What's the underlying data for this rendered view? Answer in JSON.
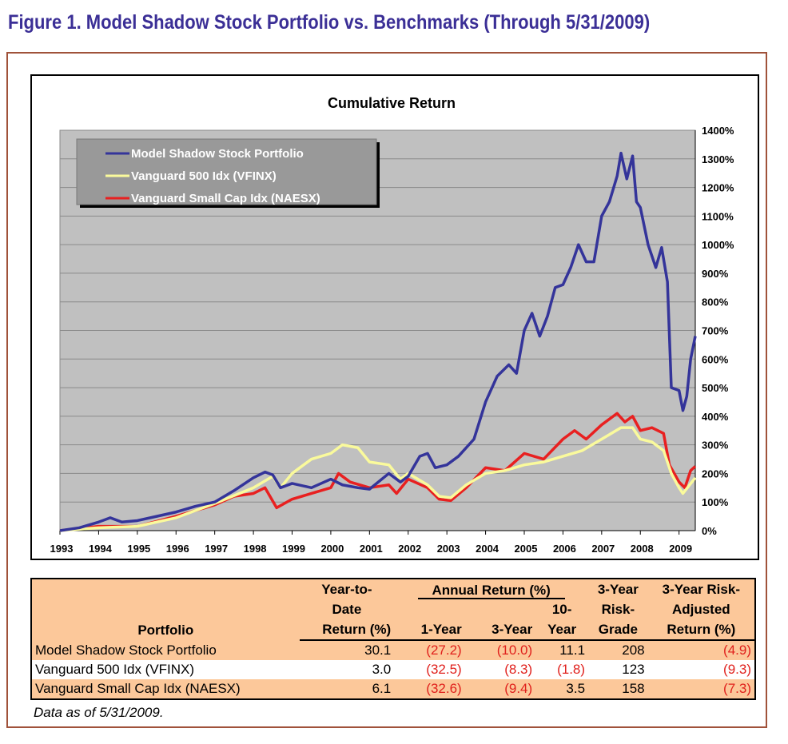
{
  "figure_title": "Figure 1. Model Shadow Stock Portfolio vs. Benchmarks (Through 5/31/2009)",
  "chart_data": {
    "type": "line",
    "title": "Cumulative Return",
    "xlim": [
      1993,
      2009.42
    ],
    "ylim": [
      0,
      1400
    ],
    "x_ticks": [
      "1993",
      "1994",
      "1995",
      "1996",
      "1997",
      "1998",
      "1999",
      "2000",
      "2001",
      "2002",
      "2003",
      "2004",
      "2005",
      "2006",
      "2007",
      "2008",
      "2009"
    ],
    "y_ticks": [
      "0%",
      "100%",
      "200%",
      "300%",
      "400%",
      "500%",
      "600%",
      "700%",
      "800%",
      "900%",
      "1000%",
      "1100%",
      "1200%",
      "1300%",
      "1400%"
    ],
    "grid": true,
    "legend_placement": "top-left",
    "series": [
      {
        "name": "Model Shadow Stock Portfolio",
        "color": "#34349a",
        "points": [
          [
            1993,
            0
          ],
          [
            1993.5,
            10
          ],
          [
            1994,
            30
          ],
          [
            1994.3,
            45
          ],
          [
            1994.6,
            30
          ],
          [
            1995,
            35
          ],
          [
            1995.5,
            50
          ],
          [
            1996,
            65
          ],
          [
            1996.5,
            85
          ],
          [
            1997,
            100
          ],
          [
            1997.5,
            140
          ],
          [
            1998,
            185
          ],
          [
            1998.3,
            205
          ],
          [
            1998.5,
            195
          ],
          [
            1998.7,
            150
          ],
          [
            1999,
            165
          ],
          [
            1999.5,
            150
          ],
          [
            2000,
            180
          ],
          [
            2000.3,
            160
          ],
          [
            2000.7,
            150
          ],
          [
            2001,
            145
          ],
          [
            2001.5,
            200
          ],
          [
            2001.8,
            170
          ],
          [
            2002,
            190
          ],
          [
            2002.3,
            260
          ],
          [
            2002.5,
            270
          ],
          [
            2002.7,
            220
          ],
          [
            2003,
            230
          ],
          [
            2003.3,
            260
          ],
          [
            2003.7,
            320
          ],
          [
            2004,
            450
          ],
          [
            2004.3,
            540
          ],
          [
            2004.6,
            580
          ],
          [
            2004.8,
            550
          ],
          [
            2005,
            700
          ],
          [
            2005.2,
            760
          ],
          [
            2005.4,
            680
          ],
          [
            2005.6,
            750
          ],
          [
            2005.8,
            850
          ],
          [
            2006,
            860
          ],
          [
            2006.2,
            920
          ],
          [
            2006.4,
            1000
          ],
          [
            2006.6,
            940
          ],
          [
            2006.8,
            940
          ],
          [
            2007,
            1100
          ],
          [
            2007.2,
            1150
          ],
          [
            2007.4,
            1240
          ],
          [
            2007.5,
            1320
          ],
          [
            2007.65,
            1230
          ],
          [
            2007.8,
            1310
          ],
          [
            2007.9,
            1150
          ],
          [
            2008,
            1130
          ],
          [
            2008.2,
            1000
          ],
          [
            2008.4,
            920
          ],
          [
            2008.55,
            990
          ],
          [
            2008.7,
            870
          ],
          [
            2008.8,
            500
          ],
          [
            2009,
            490
          ],
          [
            2009.1,
            420
          ],
          [
            2009.2,
            470
          ],
          [
            2009.3,
            600
          ],
          [
            2009.42,
            680
          ]
        ]
      },
      {
        "name": "Vanguard 500 Idx (VFINX)",
        "color": "#fafa9c",
        "points": [
          [
            1993,
            0
          ],
          [
            1994,
            10
          ],
          [
            1995,
            15
          ],
          [
            1996,
            45
          ],
          [
            1997,
            95
          ],
          [
            1998,
            150
          ],
          [
            1998.5,
            190
          ],
          [
            1998.7,
            150
          ],
          [
            1999,
            200
          ],
          [
            1999.5,
            250
          ],
          [
            2000,
            270
          ],
          [
            2000.3,
            300
          ],
          [
            2000.7,
            290
          ],
          [
            2001,
            240
          ],
          [
            2001.5,
            230
          ],
          [
            2001.8,
            180
          ],
          [
            2002,
            200
          ],
          [
            2002.5,
            160
          ],
          [
            2002.8,
            120
          ],
          [
            2003.1,
            115
          ],
          [
            2003.5,
            160
          ],
          [
            2004,
            200
          ],
          [
            2004.5,
            210
          ],
          [
            2005,
            230
          ],
          [
            2005.5,
            240
          ],
          [
            2006,
            260
          ],
          [
            2006.5,
            280
          ],
          [
            2007,
            320
          ],
          [
            2007.5,
            360
          ],
          [
            2007.8,
            360
          ],
          [
            2008,
            320
          ],
          [
            2008.3,
            310
          ],
          [
            2008.6,
            280
          ],
          [
            2008.8,
            200
          ],
          [
            2009,
            150
          ],
          [
            2009.1,
            130
          ],
          [
            2009.42,
            185
          ]
        ]
      },
      {
        "name": "Vanguard Small Cap Idx (NAESX)",
        "color": "#e82020",
        "points": [
          [
            1993,
            0
          ],
          [
            1994,
            15
          ],
          [
            1995,
            15
          ],
          [
            1996,
            50
          ],
          [
            1997,
            90
          ],
          [
            1997.5,
            120
          ],
          [
            1998,
            130
          ],
          [
            1998.3,
            150
          ],
          [
            1998.6,
            80
          ],
          [
            1999,
            110
          ],
          [
            1999.5,
            130
          ],
          [
            2000,
            150
          ],
          [
            2000.2,
            200
          ],
          [
            2000.5,
            170
          ],
          [
            2001,
            150
          ],
          [
            2001.5,
            160
          ],
          [
            2001.7,
            130
          ],
          [
            2002,
            180
          ],
          [
            2002.5,
            150
          ],
          [
            2002.8,
            110
          ],
          [
            2003.1,
            105
          ],
          [
            2003.5,
            150
          ],
          [
            2004,
            220
          ],
          [
            2004.5,
            210
          ],
          [
            2005,
            270
          ],
          [
            2005.5,
            250
          ],
          [
            2006,
            320
          ],
          [
            2006.3,
            350
          ],
          [
            2006.6,
            320
          ],
          [
            2007,
            370
          ],
          [
            2007.4,
            410
          ],
          [
            2007.6,
            380
          ],
          [
            2007.8,
            400
          ],
          [
            2008,
            350
          ],
          [
            2008.3,
            360
          ],
          [
            2008.6,
            340
          ],
          [
            2008.75,
            230
          ],
          [
            2009,
            170
          ],
          [
            2009.15,
            150
          ],
          [
            2009.3,
            210
          ],
          [
            2009.42,
            225
          ]
        ]
      }
    ]
  },
  "table": {
    "headers": {
      "portfolio": "Portfolio",
      "ytd": [
        "Year-to-",
        "Date",
        "Return (%)"
      ],
      "annual": "Annual Return (%)",
      "y1": "1-Year",
      "y3": "3-Year",
      "y10": [
        "10-",
        "Year"
      ],
      "grade": [
        "3-Year",
        "Risk-",
        "Grade"
      ],
      "risk_adj": [
        "3-Year Risk-",
        "Adjusted",
        "Return (%)"
      ]
    },
    "rows": [
      {
        "name": "Model Shadow Stock Portfolio",
        "ytd": "30.1",
        "y1": "(27.2)",
        "y3": "(10.0)",
        "y10": "11.1",
        "grade": "208",
        "risk_adj": "(4.9)"
      },
      {
        "name": "Vanguard 500 Idx (VFINX)",
        "ytd": "3.0",
        "y1": "(32.5)",
        "y3": "(8.3)",
        "y10": "(1.8)",
        "grade": "123",
        "risk_adj": "(9.3)"
      },
      {
        "name": "Vanguard Small Cap Idx (NAESX)",
        "ytd": "6.1",
        "y1": "(32.6)",
        "y3": "(9.4)",
        "y10": "3.5",
        "grade": "158",
        "risk_adj": "(7.3)"
      }
    ],
    "note": "Data as of 5/31/2009."
  }
}
